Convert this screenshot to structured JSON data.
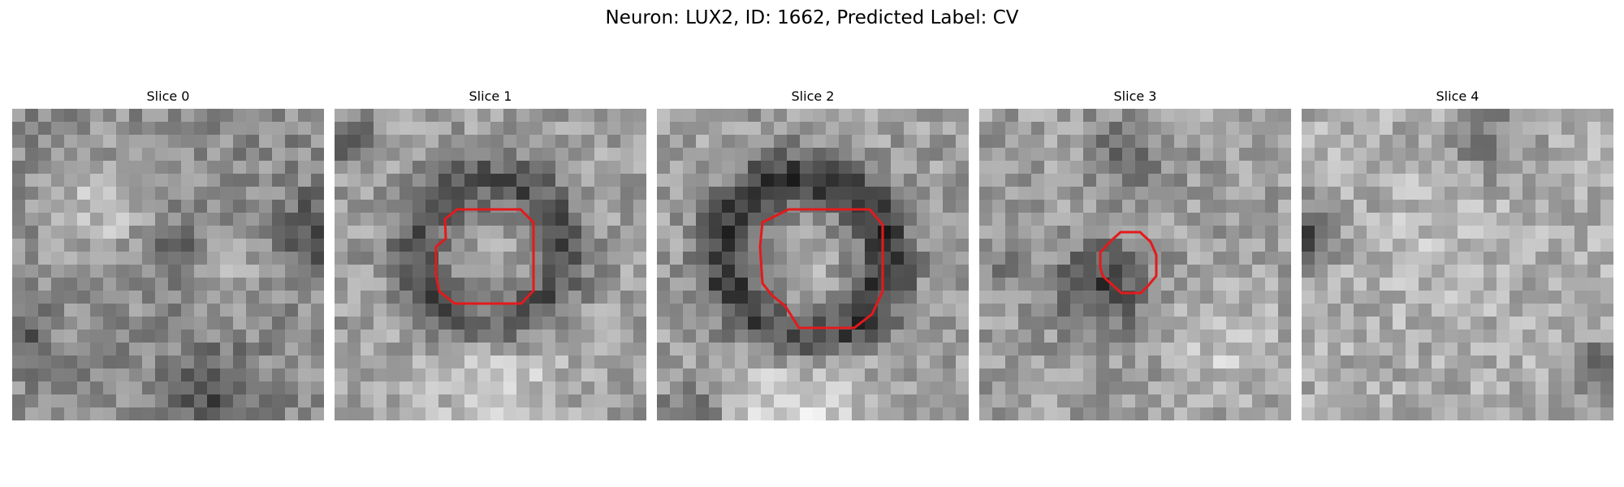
{
  "figure": {
    "title": "Neuron: LUX2, ID: 1662, Predicted Label: CV"
  },
  "slices": [
    {
      "title": "Slice 0",
      "has_contour": false
    },
    {
      "title": "Slice 1",
      "has_contour": true
    },
    {
      "title": "Slice 2",
      "has_contour": true
    },
    {
      "title": "Slice 3",
      "has_contour": true
    },
    {
      "title": "Slice 4",
      "has_contour": false
    }
  ],
  "colors": {
    "contour": "#e31a1c",
    "background": "#ffffff"
  }
}
